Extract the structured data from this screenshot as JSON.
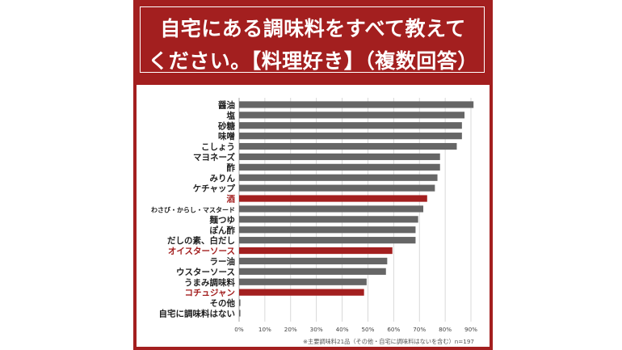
{
  "title": {
    "line1": "自宅にある調味料をすべて教えて",
    "line2": "ください。【料理好き】（複数回答）"
  },
  "footnote": "※主要調味料21品（その他・自宅に調味料はないを含む）n=197",
  "colors": {
    "brand": "#a31f1f",
    "bar_default": "#666666",
    "bar_highlight": "#a31f1f",
    "label_default": "#222222",
    "label_highlight": "#a31f1f",
    "grid": "#cfcfcf"
  },
  "chart_data": {
    "type": "bar",
    "orientation": "horizontal",
    "xlim": [
      0,
      90
    ],
    "xticks": [
      "0%",
      "10%",
      "20%",
      "30%",
      "40%",
      "50%",
      "60%",
      "70%",
      "80%",
      "90%"
    ],
    "grid": true,
    "categories": [
      "醤油",
      "塩",
      "砂糖",
      "味噌",
      "こしょう",
      "マヨネーズ",
      "酢",
      "みりん",
      "ケチャップ",
      "酒",
      "わさび・からし・マスタード",
      "麺つゆ",
      "ぽん酢",
      "だしの素、白だし",
      "オイスターソース",
      "ラー油",
      "ウスターソース",
      "うまみ調味料",
      "コチュジャン",
      "その他",
      "自宅に調味料はない"
    ],
    "values": [
      91,
      87.5,
      86.5,
      86.5,
      84.5,
      78,
      78,
      77,
      76,
      73,
      71.5,
      69.5,
      68.5,
      68.5,
      59.5,
      57.5,
      57,
      49.5,
      48.5,
      0.5,
      0.5
    ],
    "highlighted": [
      "酒",
      "オイスターソース",
      "コチュジャン"
    ]
  }
}
